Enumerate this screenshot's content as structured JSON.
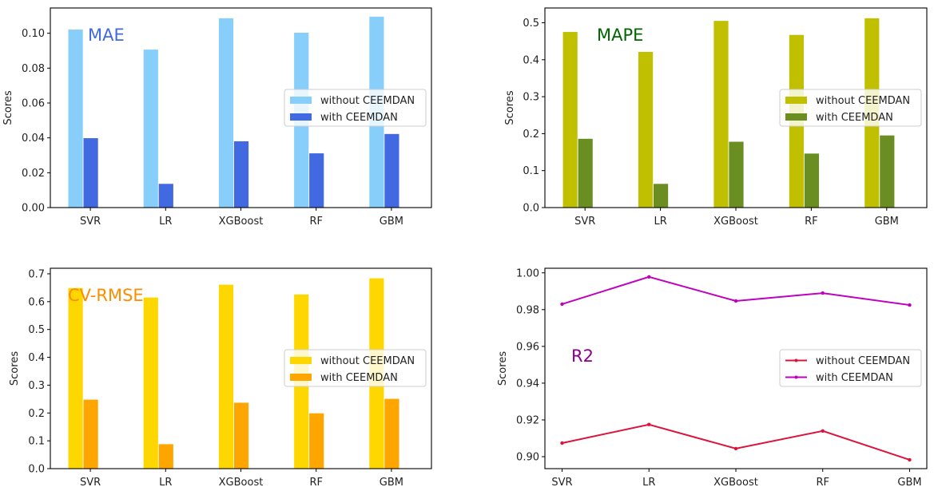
{
  "chart_data": [
    {
      "type": "bar",
      "annotation": "MAE",
      "annotation_color": "#4169E1",
      "categories": [
        "SVR",
        "LR",
        "XGBoost",
        "RF",
        "GBM"
      ],
      "series": [
        {
          "name": "without CEEMDAN",
          "color": "#87CEFA",
          "values": [
            0.1023,
            0.0908,
            0.1088,
            0.1005,
            0.1097
          ]
        },
        {
          "name": "with CEEMDAN",
          "color": "#4169E1",
          "values": [
            0.04,
            0.0138,
            0.0382,
            0.0313,
            0.0424
          ]
        }
      ],
      "xlabel": "",
      "ylabel": "Scores",
      "ylim": [
        0,
        0.1145
      ],
      "yticks": [
        "0.00",
        "0.02",
        "0.04",
        "0.06",
        "0.08",
        "0.10"
      ],
      "ytick_values": [
        0,
        0.02,
        0.04,
        0.06,
        0.08,
        0.1
      ],
      "legend": "center-right",
      "grid": false
    },
    {
      "type": "bar",
      "annotation": "MAPE",
      "annotation_color": "#006400",
      "categories": [
        "SVR",
        "LR",
        "XGBoost",
        "RF",
        "GBM"
      ],
      "series": [
        {
          "name": "without CEEMDAN",
          "color": "#C0C000",
          "values": [
            0.476,
            0.422,
            0.506,
            0.468,
            0.513
          ]
        },
        {
          "name": "with CEEMDAN",
          "color": "#6B8E23",
          "values": [
            0.187,
            0.065,
            0.179,
            0.147,
            0.196
          ]
        }
      ],
      "xlabel": "",
      "ylabel": "Scores",
      "ylim": [
        0,
        0.54
      ],
      "yticks": [
        "0.0",
        "0.1",
        "0.2",
        "0.3",
        "0.4",
        "0.5"
      ],
      "ytick_values": [
        0,
        0.1,
        0.2,
        0.3,
        0.4,
        0.5
      ],
      "legend": "center-right",
      "grid": false
    },
    {
      "type": "bar",
      "annotation": "CV-RMSE",
      "annotation_color": "#FF8C00",
      "categories": [
        "SVR",
        "LR",
        "XGBoost",
        "RF",
        "GBM"
      ],
      "series": [
        {
          "name": "without CEEMDAN",
          "color": "#FFD700",
          "values": [
            0.65,
            0.616,
            0.662,
            0.627,
            0.685
          ]
        },
        {
          "name": "with CEEMDAN",
          "color": "#FFA500",
          "values": [
            0.249,
            0.089,
            0.238,
            0.2,
            0.252
          ]
        }
      ],
      "xlabel": "",
      "ylabel": "Scores",
      "ylim": [
        0,
        0.72
      ],
      "yticks": [
        "0.0",
        "0.1",
        "0.2",
        "0.3",
        "0.4",
        "0.5",
        "0.6",
        "0.7"
      ],
      "ytick_values": [
        0,
        0.1,
        0.2,
        0.3,
        0.4,
        0.5,
        0.6,
        0.7
      ],
      "legend": "center-right",
      "grid": false
    },
    {
      "type": "line",
      "annotation": "R2",
      "annotation_color": "#8B008B",
      "categories": [
        "SVR",
        "LR",
        "XGBoost",
        "RF",
        "GBM"
      ],
      "series": [
        {
          "name": "without CEEMDAN",
          "color": "#DC143C",
          "values": [
            0.9074,
            0.9175,
            0.9044,
            0.914,
            0.8983
          ]
        },
        {
          "name": "with CEEMDAN",
          "color": "#C000C0",
          "values": [
            0.983,
            0.9978,
            0.9847,
            0.989,
            0.9825
          ]
        }
      ],
      "xlabel": "",
      "ylabel": "Scores",
      "ylim": [
        0.8935,
        1.0025
      ],
      "yticks": [
        "0.90",
        "0.92",
        "0.94",
        "0.96",
        "0.98",
        "1.00"
      ],
      "ytick_values": [
        0.9,
        0.92,
        0.94,
        0.96,
        0.98,
        1.0
      ],
      "legend": "center-right",
      "grid": false
    }
  ]
}
